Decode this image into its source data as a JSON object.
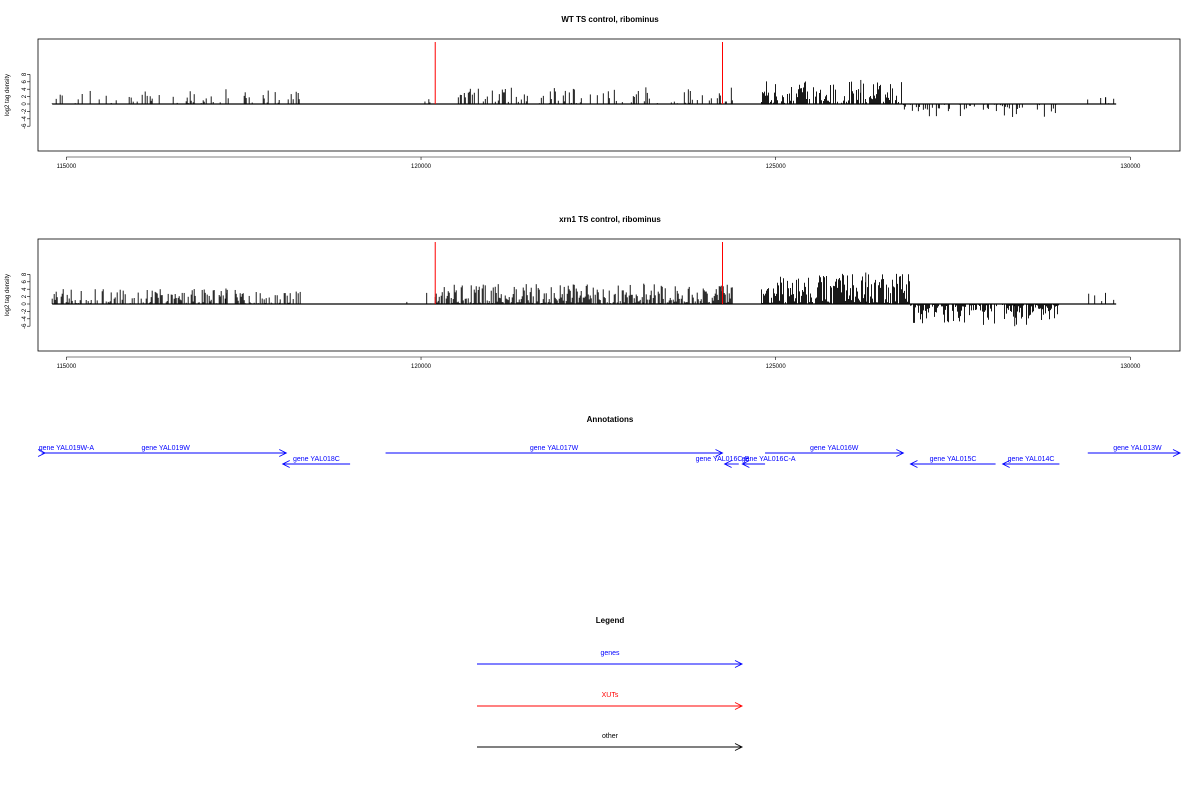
{
  "chart_data": [
    {
      "type": "bar",
      "title": "WT TS control, ribominus",
      "ylabel": "log2 tag density",
      "xlim": [
        114600,
        130700
      ],
      "ylim": [
        -6,
        9
      ],
      "y_ticks": [
        -6,
        -4,
        -2,
        0,
        2,
        4,
        6,
        8
      ],
      "y_tick_labels": [
        "-6",
        "-4",
        "-2",
        "0",
        "2",
        "4",
        "6",
        "8"
      ],
      "x_ticks": [
        115000,
        120000,
        125000,
        130000
      ],
      "x_tick_labels": [
        "115000",
        "120000",
        "125000",
        "130000"
      ],
      "baseline_range": [
        114800,
        129800
      ],
      "marker_lines": [
        120200,
        124250
      ],
      "marker_color": "#ff0000",
      "segments": [
        {
          "start": 114800,
          "end": 118300,
          "sign": 1,
          "max": 4.0,
          "density": 0.09
        },
        {
          "start": 119900,
          "end": 120200,
          "sign": 1,
          "max": 1.3,
          "density": 0.03
        },
        {
          "start": 120300,
          "end": 124400,
          "sign": 1,
          "max": 4.5,
          "density": 0.11
        },
        {
          "start": 124800,
          "end": 126800,
          "sign": 1,
          "max": 6.5,
          "density": 0.25
        },
        {
          "start": 126800,
          "end": 129000,
          "sign": -1,
          "max": 3.5,
          "density": 0.09
        },
        {
          "start": 129300,
          "end": 129800,
          "sign": 1,
          "max": 1.8,
          "density": 0.02
        }
      ]
    },
    {
      "type": "bar",
      "title": "xrn1 TS control, ribominus",
      "ylabel": "log2 tag density",
      "xlim": [
        114600,
        130700
      ],
      "ylim": [
        -6,
        9
      ],
      "y_ticks": [
        -6,
        -4,
        -2,
        0,
        2,
        4,
        6,
        8
      ],
      "y_tick_labels": [
        "-6",
        "-4",
        "-2",
        "0",
        "2",
        "4",
        "6",
        "8"
      ],
      "x_ticks": [
        115000,
        120000,
        125000,
        130000
      ],
      "x_tick_labels": [
        "115000",
        "120000",
        "125000",
        "130000"
      ],
      "baseline_range": [
        114800,
        129800
      ],
      "marker_lines": [
        120200,
        124250
      ],
      "marker_color": "#ff0000",
      "segments": [
        {
          "start": 114800,
          "end": 118300,
          "sign": 1,
          "max": 4.2,
          "density": 0.18
        },
        {
          "start": 119800,
          "end": 120200,
          "sign": 1,
          "max": 3.0,
          "density": 0.04
        },
        {
          "start": 120200,
          "end": 124400,
          "sign": 1,
          "max": 5.5,
          "density": 0.3
        },
        {
          "start": 124800,
          "end": 126900,
          "sign": 1,
          "max": 8.5,
          "density": 0.45
        },
        {
          "start": 126900,
          "end": 129000,
          "sign": -1,
          "max": 6.0,
          "density": 0.3
        },
        {
          "start": 129300,
          "end": 129800,
          "sign": 1,
          "max": 3.0,
          "density": 0.05
        }
      ]
    }
  ],
  "annotations": {
    "title": "Annotations",
    "genes": [
      {
        "label": "gene YAL019W-A",
        "start": 114650,
        "end": 114700,
        "strand": "+",
        "row": 0,
        "label_x": 115000
      },
      {
        "label": "gene YAL019W",
        "start": 114700,
        "end": 118100,
        "strand": "+",
        "row": 0
      },
      {
        "label": "gene YAL018C",
        "start": 118050,
        "end": 119000,
        "strand": "-",
        "row": 1
      },
      {
        "label": "gene YAL017W",
        "start": 119500,
        "end": 124250,
        "strand": "+",
        "row": 0
      },
      {
        "label": "gene YAL016C-B",
        "start": 124280,
        "end": 124480,
        "strand": "-",
        "row": 1,
        "label_x": 124250
      },
      {
        "label": "gene YAL016C-A",
        "start": 124530,
        "end": 124850,
        "strand": "-",
        "row": 1,
        "label_x": 124900
      },
      {
        "label": "gene YAL016W",
        "start": 124850,
        "end": 126800,
        "strand": "+",
        "row": 0
      },
      {
        "label": "gene YAL015C",
        "start": 126900,
        "end": 128100,
        "strand": "-",
        "row": 1
      },
      {
        "label": "gene YAL014C",
        "start": 128200,
        "end": 129000,
        "strand": "-",
        "row": 1
      },
      {
        "label": "gene YAL013W",
        "start": 129400,
        "end": 130700,
        "strand": "+",
        "row": 0,
        "label_x": 130100
      }
    ]
  },
  "legend": {
    "title": "Legend",
    "items": [
      {
        "label": "genes",
        "color": "#0000ff"
      },
      {
        "label": "XUTs",
        "color": "#ff0000"
      },
      {
        "label": "other",
        "color": "#000000"
      }
    ]
  }
}
